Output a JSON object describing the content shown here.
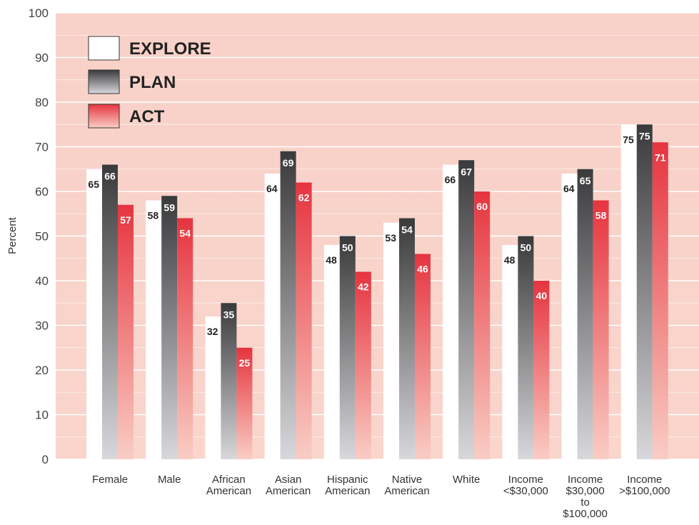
{
  "chart_data": {
    "type": "bar",
    "ylabel": "Percent",
    "xlabel": "",
    "ylim": [
      0,
      100
    ],
    "yticks": [
      "0",
      "10",
      "20",
      "30",
      "40",
      "50",
      "60",
      "70",
      "80",
      "90",
      "100"
    ],
    "grid": true,
    "legend_position": "top-left",
    "categories": [
      [
        "Female"
      ],
      [
        "Male"
      ],
      [
        "African",
        "American"
      ],
      [
        "Asian",
        "American"
      ],
      [
        "Hispanic",
        "American"
      ],
      [
        "Native",
        "American"
      ],
      [
        "White"
      ],
      [
        "Income",
        "<$30,000"
      ],
      [
        "Income",
        "$30,000",
        "to",
        "$100,000"
      ],
      [
        "Income",
        ">$100,000"
      ]
    ],
    "series": [
      {
        "name": "EXPLORE",
        "values": [
          65,
          58,
          32,
          64,
          48,
          53,
          66,
          48,
          64,
          75
        ],
        "color_top": "#ffffff",
        "color_bottom": "#ffffff",
        "label_color": "#222222"
      },
      {
        "name": "PLAN",
        "values": [
          66,
          59,
          35,
          69,
          50,
          54,
          67,
          50,
          65,
          75
        ],
        "color_top": "#3a3a3c",
        "color_bottom": "#d8d8dc",
        "label_color": "#ffffff"
      },
      {
        "name": "ACT",
        "values": [
          57,
          54,
          25,
          62,
          42,
          46,
          60,
          40,
          58,
          71
        ],
        "color_top": "#e6343f",
        "color_bottom": "#f9cdc4",
        "label_color": "#ffffff"
      }
    ],
    "plot_background": "#f8d1c8",
    "grid_color": "#ffffff"
  }
}
